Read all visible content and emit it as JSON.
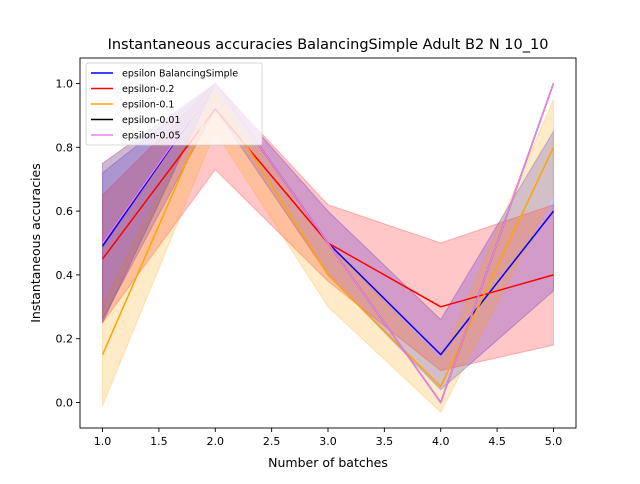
{
  "chart_data": {
    "type": "line",
    "title": "Instantaneous accuracies BalancingSimple Adult B2 N 10_10",
    "xlabel": "Number of batches",
    "ylabel": "Instantaneous accuracies",
    "xlim": [
      0.8,
      5.2
    ],
    "ylim": [
      -0.08,
      1.08
    ],
    "xticks": [
      "1.0",
      "1.5",
      "2.0",
      "2.5",
      "3.0",
      "3.5",
      "4.0",
      "4.5",
      "5.0"
    ],
    "yticks": [
      "0.0",
      "0.2",
      "0.4",
      "0.6",
      "0.8",
      "1.0"
    ],
    "grid": false,
    "legend_position": "top-left",
    "x": [
      1,
      2,
      3,
      4,
      5
    ],
    "series": [
      {
        "name": "epsilon BalancingSimple",
        "color": "#0000ff",
        "values": [
          0.49,
          1.0,
          0.5,
          0.15,
          0.6
        ],
        "lower": [
          0.26,
          0.92,
          0.4,
          0.04,
          0.35
        ],
        "upper": [
          0.72,
          1.0,
          0.6,
          0.26,
          0.85
        ]
      },
      {
        "name": "epsilon-0.2",
        "color": "#ff0000",
        "values": [
          0.45,
          0.92,
          0.5,
          0.3,
          0.4
        ],
        "lower": [
          0.25,
          0.73,
          0.38,
          0.1,
          0.18
        ],
        "upper": [
          0.65,
          1.0,
          0.62,
          0.5,
          0.62
        ]
      },
      {
        "name": "epsilon-0.1",
        "color": "#ffa500",
        "values": [
          0.15,
          0.96,
          0.4,
          0.05,
          0.8
        ],
        "lower": [
          -0.01,
          0.85,
          0.3,
          -0.03,
          0.65
        ],
        "upper": [
          0.31,
          1.0,
          0.5,
          0.13,
          0.95
        ]
      },
      {
        "name": "epsilon-0.01",
        "color": "#000000",
        "values": [
          0.5,
          1.0,
          0.5,
          0.0,
          1.0
        ],
        "lower": [
          0.25,
          1.0,
          0.5,
          0.0,
          1.0
        ],
        "upper": [
          0.75,
          1.0,
          0.5,
          0.0,
          1.0
        ]
      },
      {
        "name": "epsilon-0.05",
        "color": "#ee82ee",
        "values": [
          0.5,
          1.0,
          0.5,
          0.0,
          1.0
        ],
        "lower": [
          0.25,
          1.0,
          0.5,
          0.0,
          1.0
        ],
        "upper": [
          0.75,
          1.0,
          0.5,
          0.0,
          1.0
        ]
      }
    ]
  }
}
